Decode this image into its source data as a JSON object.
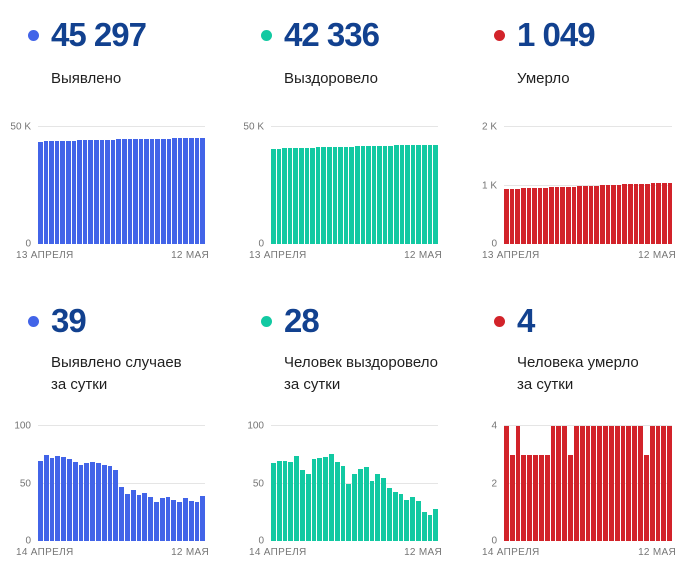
{
  "colors": {
    "blue": "#4264e8",
    "teal": "#12c9a2",
    "red": "#d2232a",
    "headline_text": "#12418f",
    "axis_text": "#757575",
    "label_text": "#1f1f1f",
    "gridline": "#e5e5e5"
  },
  "panels": [
    {
      "value": "45 297",
      "label": "Выявлено",
      "color": "#4264e8"
    },
    {
      "value": "42 336",
      "label": "Выздоровело",
      "color": "#12c9a2"
    },
    {
      "value": "1 049",
      "label": "Умерло",
      "color": "#d2232a"
    },
    {
      "value": "39",
      "label": "Выявлено случаев",
      "label2": "за сутки",
      "color": "#4264e8"
    },
    {
      "value": "28",
      "label": "Человек выздоровело",
      "label2": "за сутки",
      "color": "#12c9a2"
    },
    {
      "value": "4",
      "label": "Человека умерло",
      "label2": "за сутки",
      "color": "#d2232a"
    }
  ],
  "chart_data": [
    {
      "type": "bar",
      "title": "Выявлено (всего)",
      "color": "#4264e8",
      "x_start": "13 АПРЕЛЯ",
      "x_end": "12 МАЯ",
      "ylim": [
        0,
        50000
      ],
      "yticks": [
        {
          "label": "50 K",
          "pos": 0,
          "line": true
        },
        {
          "label": "0",
          "pos": 1,
          "line": false
        }
      ],
      "values": [
        43753,
        43823,
        43898,
        43970,
        44044,
        44117,
        44188,
        44257,
        44323,
        44391,
        44460,
        44528,
        44594,
        44659,
        44721,
        44768,
        44809,
        44853,
        44893,
        44935,
        44973,
        45007,
        45044,
        45082,
        45118,
        45152,
        45189,
        45224,
        45258,
        45297
      ]
    },
    {
      "type": "bar",
      "title": "Выздоровело (всего)",
      "color": "#12c9a2",
      "x_start": "13 АПРЕЛЯ",
      "x_end": "12 МАЯ",
      "ylim": [
        0,
        50000
      ],
      "yticks": [
        {
          "label": "50 K",
          "pos": 0,
          "line": true
        },
        {
          "label": "0",
          "pos": 1,
          "line": false
        }
      ],
      "values": [
        40724,
        40792,
        40862,
        40932,
        41001,
        41075,
        41137,
        41195,
        41266,
        41338,
        41411,
        41487,
        41556,
        41621,
        41671,
        41729,
        41792,
        41856,
        41908,
        41966,
        42021,
        42067,
        42110,
        42151,
        42187,
        42225,
        42260,
        42285,
        42308,
        42336
      ]
    },
    {
      "type": "bar",
      "title": "Умерло (всего)",
      "color": "#d2232a",
      "x_start": "13 АПРЕЛЯ",
      "x_end": "12 МАЯ",
      "ylim": [
        0,
        2000
      ],
      "yticks": [
        {
          "label": "2 K",
          "pos": 0,
          "line": true
        },
        {
          "label": "1 K",
          "pos": 0.5,
          "line": true
        },
        {
          "label": "0",
          "pos": 1,
          "line": false
        }
      ],
      "values": [
        941,
        945,
        948,
        952,
        955,
        958,
        961,
        964,
        967,
        971,
        975,
        979,
        982,
        986,
        990,
        994,
        998,
        1002,
        1006,
        1010,
        1014,
        1018,
        1022,
        1026,
        1030,
        1033,
        1037,
        1041,
        1045,
        1049
      ]
    },
    {
      "type": "bar",
      "title": "Выявлено случаев за сутки",
      "color": "#4264e8",
      "x_start": "14 АПРЕЛЯ",
      "x_end": "12 МАЯ",
      "ylim": [
        0,
        100
      ],
      "yticks": [
        {
          "label": "100",
          "pos": 0,
          "line": true
        },
        {
          "label": "50",
          "pos": 0.5,
          "line": true
        },
        {
          "label": "0",
          "pos": 1,
          "line": false
        }
      ],
      "values": [
        70,
        75,
        72,
        74,
        73,
        71,
        69,
        66,
        68,
        69,
        68,
        66,
        65,
        62,
        47,
        41,
        44,
        40,
        42,
        38,
        34,
        37,
        38,
        36,
        34,
        37,
        35,
        34,
        39
      ]
    },
    {
      "type": "bar",
      "title": "Человек выздоровело за сутки",
      "color": "#12c9a2",
      "x_start": "14 АПРЕЛЯ",
      "x_end": "12 МАЯ",
      "ylim": [
        0,
        100
      ],
      "yticks": [
        {
          "label": "100",
          "pos": 0,
          "line": true
        },
        {
          "label": "50",
          "pos": 0.5,
          "line": true
        },
        {
          "label": "0",
          "pos": 1,
          "line": false
        }
      ],
      "values": [
        68,
        70,
        70,
        69,
        74,
        62,
        58,
        71,
        72,
        73,
        76,
        69,
        65,
        50,
        58,
        63,
        64,
        52,
        58,
        55,
        46,
        43,
        41,
        36,
        38,
        35,
        25,
        23,
        28
      ]
    },
    {
      "type": "bar",
      "title": "Человека умерло за сутки",
      "color": "#d2232a",
      "x_start": "14 АПРЕЛЯ",
      "x_end": "12 МАЯ",
      "ylim": [
        0,
        4
      ],
      "yticks": [
        {
          "label": "4",
          "pos": 0,
          "line": true
        },
        {
          "label": "2",
          "pos": 0.5,
          "line": true
        },
        {
          "label": "0",
          "pos": 1,
          "line": false
        }
      ],
      "values": [
        4,
        3,
        4,
        3,
        3,
        3,
        3,
        3,
        4,
        4,
        4,
        3,
        4,
        4,
        4,
        4,
        4,
        4,
        4,
        4,
        4,
        4,
        4,
        4,
        3,
        4,
        4,
        4,
        4
      ]
    }
  ]
}
